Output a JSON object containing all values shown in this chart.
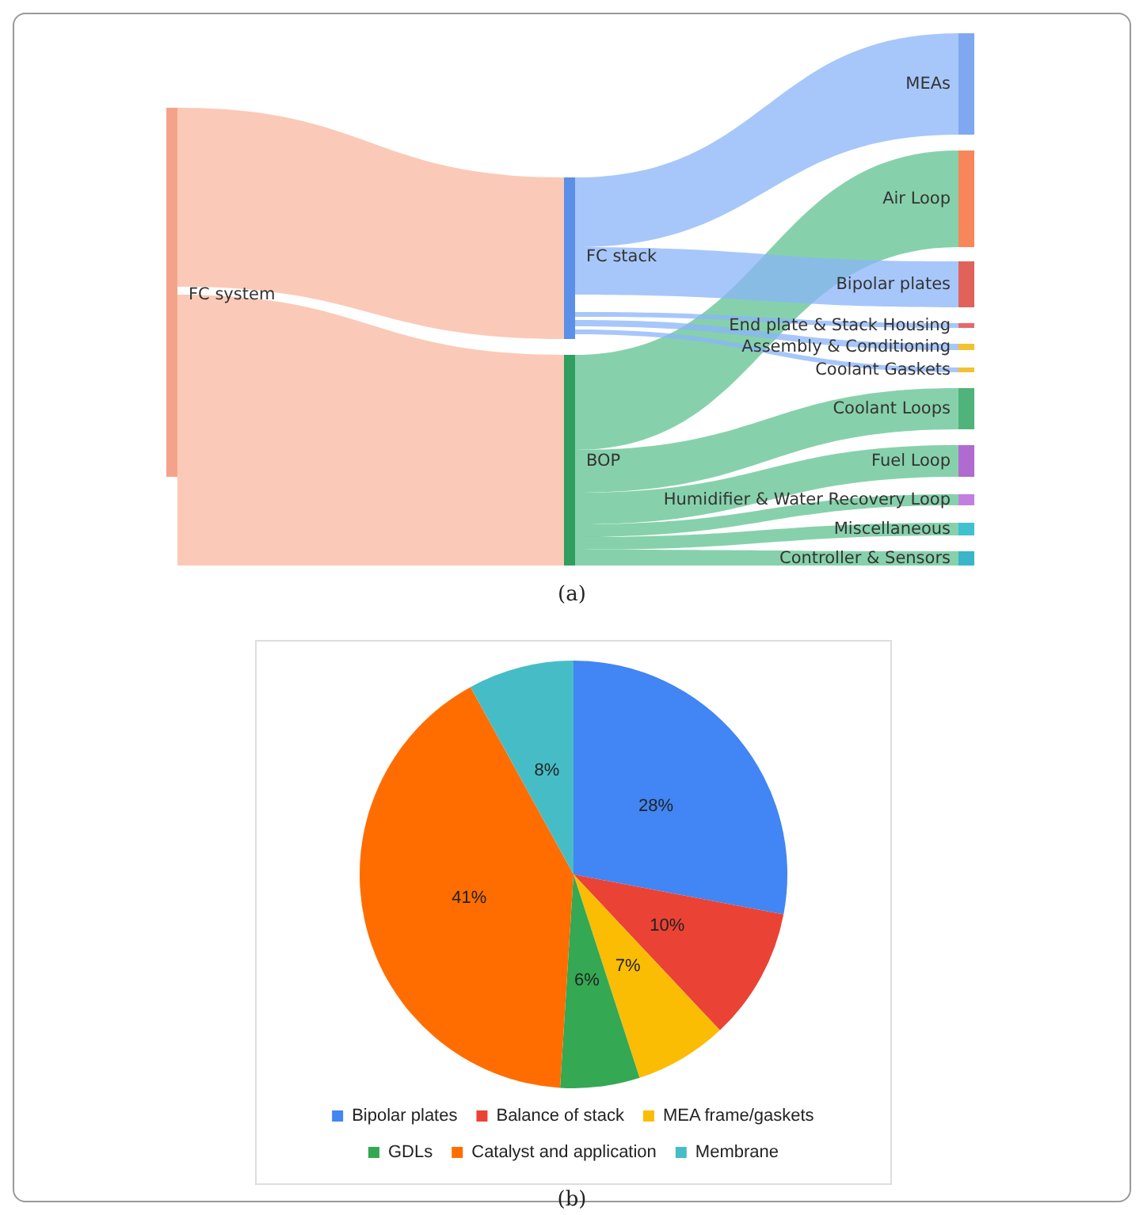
{
  "chart_data": [
    {
      "type": "other",
      "categories": [
        "FC system",
        "FC stack",
        "BOP",
        "MEAs",
        "Air Loop",
        "Bipolar plates",
        "End plate & Stack Housing",
        "Assembly & Conditioning",
        "Coolant Gaskets",
        "Coolant Loops",
        "Fuel Loop",
        "Humidifier & Water Recovery Loop",
        "Miscellaneous",
        "Controller & Sensors"
      ],
      "annotations": [
        "(a)"
      ]
    },
    {
      "type": "pie",
      "categories": [
        "Bipolar plates",
        "Balance of stack",
        "MEA frame/gaskets",
        "GDLs",
        "Catalyst and application",
        "Membrane"
      ],
      "values": [
        28,
        10,
        7,
        6,
        41,
        8
      ],
      "value_labels": [
        "28%",
        "10%",
        "7%",
        "6%",
        "41%",
        "8%"
      ],
      "colors": [
        "#4285f4",
        "#ea4335",
        "#fbbc04",
        "#34a853",
        "#ff6d01",
        "#46bdc6"
      ],
      "legend": "bottom",
      "annotations": [
        "(b)"
      ]
    }
  ]
}
